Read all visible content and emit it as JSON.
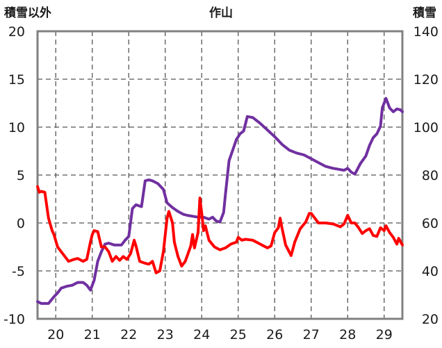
{
  "chart_data": {
    "type": "line",
    "title": "作山",
    "left_axis_title": "積雪以外",
    "right_axis_title": "積雪",
    "x_ticks": [
      "20",
      "21",
      "22",
      "23",
      "24",
      "25",
      "26",
      "27",
      "28",
      "29"
    ],
    "xlim": [
      19.5,
      29.5
    ],
    "left_ylim": [
      -10,
      20
    ],
    "left_yticks": [
      "20",
      "15",
      "10",
      "5",
      "0",
      "-5",
      "-10"
    ],
    "right_ylim": [
      20,
      140
    ],
    "right_yticks": [
      "140",
      "120",
      "100",
      "80",
      "60",
      "40",
      "20"
    ],
    "grid": "dashed vertical and horizontal",
    "series": [
      {
        "color": "#7030a0",
        "axis": "right",
        "points": [
          [
            19.5,
            27.2
          ],
          [
            19.6,
            26.4
          ],
          [
            19.8,
            26.4
          ],
          [
            19.95,
            29.2
          ],
          [
            20.05,
            30.8
          ],
          [
            20.15,
            32.8
          ],
          [
            20.3,
            33.6
          ],
          [
            20.45,
            34
          ],
          [
            20.6,
            35.2
          ],
          [
            20.75,
            35.2
          ],
          [
            20.85,
            34
          ],
          [
            20.95,
            32
          ],
          [
            21.05,
            36
          ],
          [
            21.15,
            44
          ],
          [
            21.25,
            48
          ],
          [
            21.35,
            51.2
          ],
          [
            21.45,
            51.6
          ],
          [
            21.6,
            50.8
          ],
          [
            21.8,
            50.8
          ],
          [
            21.9,
            52.8
          ],
          [
            22.0,
            54.4
          ],
          [
            22.1,
            66
          ],
          [
            22.2,
            67.6
          ],
          [
            22.35,
            66.8
          ],
          [
            22.45,
            77.6
          ],
          [
            22.55,
            78
          ],
          [
            22.65,
            77.6
          ],
          [
            22.8,
            76.4
          ],
          [
            22.95,
            74
          ],
          [
            23.05,
            68.4
          ],
          [
            23.2,
            66.4
          ],
          [
            23.35,
            64.8
          ],
          [
            23.5,
            63.6
          ],
          [
            23.6,
            63.2
          ],
          [
            23.75,
            62.8
          ],
          [
            23.9,
            62.4
          ],
          [
            24.05,
            62.4
          ],
          [
            24.2,
            61.6
          ],
          [
            24.3,
            62.4
          ],
          [
            24.4,
            60.8
          ],
          [
            24.5,
            60.4
          ],
          [
            24.6,
            64.4
          ],
          [
            24.65,
            72
          ],
          [
            24.75,
            86
          ],
          [
            24.85,
            90.4
          ],
          [
            24.95,
            94.8
          ],
          [
            25.05,
            97.2
          ],
          [
            25.15,
            98.4
          ],
          [
            25.25,
            104.4
          ],
          [
            25.4,
            104
          ],
          [
            25.6,
            101.6
          ],
          [
            25.8,
            98.8
          ],
          [
            26.0,
            96
          ],
          [
            26.2,
            92.8
          ],
          [
            26.4,
            90.4
          ],
          [
            26.6,
            89.2
          ],
          [
            26.8,
            88.4
          ],
          [
            27.0,
            86.8
          ],
          [
            27.2,
            85.2
          ],
          [
            27.4,
            83.6
          ],
          [
            27.6,
            82.8
          ],
          [
            27.75,
            82.4
          ],
          [
            27.9,
            82
          ],
          [
            28.0,
            82.8
          ],
          [
            28.1,
            81.2
          ],
          [
            28.2,
            80.4
          ],
          [
            28.35,
            84.8
          ],
          [
            28.5,
            88
          ],
          [
            28.6,
            92.4
          ],
          [
            28.7,
            95.6
          ],
          [
            28.8,
            97.2
          ],
          [
            28.9,
            100.4
          ],
          [
            28.95,
            108
          ],
          [
            29.05,
            112
          ],
          [
            29.15,
            108
          ],
          [
            29.25,
            106.4
          ],
          [
            29.35,
            107.6
          ],
          [
            29.45,
            107.2
          ],
          [
            29.5,
            106.4
          ]
        ]
      },
      {
        "color": "#ff0000",
        "axis": "left",
        "points": [
          [
            19.5,
            3.8
          ],
          [
            19.55,
            3.2
          ],
          [
            19.6,
            3.3
          ],
          [
            19.7,
            3.2
          ],
          [
            19.8,
            0.5
          ],
          [
            19.9,
            -0.8
          ],
          [
            19.95,
            -1.2
          ],
          [
            20.05,
            -2.5
          ],
          [
            20.15,
            -3
          ],
          [
            20.25,
            -3.5
          ],
          [
            20.35,
            -4
          ],
          [
            20.5,
            -3.8
          ],
          [
            20.6,
            -3.7
          ],
          [
            20.75,
            -4
          ],
          [
            20.85,
            -3.8
          ],
          [
            20.95,
            -2
          ],
          [
            21.0,
            -1.2
          ],
          [
            21.05,
            -0.8
          ],
          [
            21.15,
            -0.9
          ],
          [
            21.25,
            -2.5
          ],
          [
            21.35,
            -2.5
          ],
          [
            21.45,
            -3
          ],
          [
            21.55,
            -4
          ],
          [
            21.65,
            -3.5
          ],
          [
            21.75,
            -3.9
          ],
          [
            21.85,
            -3.5
          ],
          [
            21.95,
            -3.8
          ],
          [
            22.05,
            -3.2
          ],
          [
            22.15,
            -1.8
          ],
          [
            22.2,
            -2.4
          ],
          [
            22.3,
            -4
          ],
          [
            22.45,
            -4.2
          ],
          [
            22.55,
            -4.3
          ],
          [
            22.65,
            -4
          ],
          [
            22.75,
            -5.2
          ],
          [
            22.85,
            -5
          ],
          [
            22.95,
            -3
          ],
          [
            23.0,
            -1.2
          ],
          [
            23.05,
            0.5
          ],
          [
            23.1,
            1.2
          ],
          [
            23.2,
            0
          ],
          [
            23.25,
            -2
          ],
          [
            23.35,
            -3.5
          ],
          [
            23.45,
            -4.5
          ],
          [
            23.55,
            -4
          ],
          [
            23.7,
            -2.4
          ],
          [
            23.75,
            -1.2
          ],
          [
            23.8,
            -2.6
          ],
          [
            23.9,
            -1
          ],
          [
            23.95,
            2.6
          ],
          [
            24.0,
            1
          ],
          [
            24.05,
            -0.8
          ],
          [
            24.1,
            -0.3
          ],
          [
            24.2,
            -1.8
          ],
          [
            24.35,
            -2.5
          ],
          [
            24.5,
            -2.8
          ],
          [
            24.65,
            -2.6
          ],
          [
            24.8,
            -2.2
          ],
          [
            24.95,
            -2
          ],
          [
            25.0,
            -1.5
          ],
          [
            25.1,
            -1.8
          ],
          [
            25.2,
            -1.7
          ],
          [
            25.4,
            -1.8
          ],
          [
            25.6,
            -2.2
          ],
          [
            25.8,
            -2.6
          ],
          [
            25.9,
            -2.4
          ],
          [
            26.0,
            -1
          ],
          [
            26.1,
            -0.5
          ],
          [
            26.15,
            0.5
          ],
          [
            26.2,
            -0.5
          ],
          [
            26.3,
            -2.3
          ],
          [
            26.45,
            -3.4
          ],
          [
            26.55,
            -2
          ],
          [
            26.7,
            -0.6
          ],
          [
            26.85,
            0.1
          ],
          [
            26.95,
            1
          ],
          [
            27.0,
            1
          ],
          [
            27.1,
            0.5
          ],
          [
            27.2,
            0
          ],
          [
            27.4,
            0
          ],
          [
            27.6,
            -0.1
          ],
          [
            27.8,
            -0.4
          ],
          [
            27.9,
            -0.1
          ],
          [
            28.0,
            0.8
          ],
          [
            28.1,
            0
          ],
          [
            28.2,
            0
          ],
          [
            28.3,
            -0.5
          ],
          [
            28.4,
            -1.1
          ],
          [
            28.5,
            -0.8
          ],
          [
            28.6,
            -0.6
          ],
          [
            28.7,
            -1.3
          ],
          [
            28.8,
            -1.4
          ],
          [
            28.9,
            -0.5
          ],
          [
            29.0,
            -0.8
          ],
          [
            29.05,
            -0.3
          ],
          [
            29.15,
            -1
          ],
          [
            29.25,
            -1.5
          ],
          [
            29.35,
            -2.2
          ],
          [
            29.4,
            -1.6
          ],
          [
            29.5,
            -2.3
          ]
        ]
      }
    ]
  }
}
